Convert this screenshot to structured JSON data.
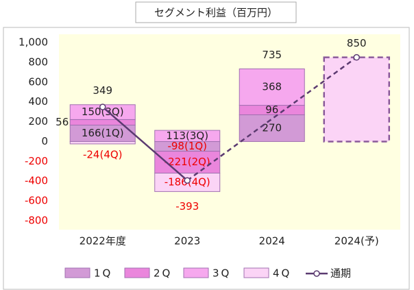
{
  "chart_data": {
    "type": "stacked_bar_line",
    "title": "セグメント利益（百万円）",
    "categories": [
      "2022年度",
      "2023",
      "2024",
      "2024(予)"
    ],
    "series": [
      {
        "name": "1Q",
        "color": "#d29ad6",
        "values": [
          166,
          -98,
          270,
          null
        ],
        "value_labels": [
          "166(1Q)",
          "-98(1Q)",
          "270",
          null
        ]
      },
      {
        "name": "2Q",
        "color": "#ea86dc",
        "values": [
          56,
          -221,
          96,
          null
        ],
        "value_labels": [
          "56",
          "-221(2Q)",
          "96",
          null
        ]
      },
      {
        "name": "3Q",
        "color": "#f6a8ee",
        "values": [
          150,
          113,
          368,
          null
        ],
        "value_labels": [
          "150(3Q)",
          "113(3Q)",
          "368",
          null
        ]
      },
      {
        "name": "4Q",
        "color": "#fbd4f6",
        "values": [
          -24,
          -186,
          null,
          850
        ],
        "value_labels": [
          "-24(4Q)",
          "-186(4Q)",
          null,
          null
        ]
      }
    ],
    "line": {
      "name": "通期",
      "color": "#5b3a70",
      "values": [
        349,
        -393,
        null,
        850
      ]
    },
    "totals": [
      349,
      -393,
      735,
      850
    ],
    "ylim": [
      -800,
      1000
    ],
    "yticks": [
      -800,
      -600,
      -400,
      -200,
      0,
      200,
      400,
      600,
      800,
      {
        "value": 1000,
        "label": "1,000"
      }
    ],
    "grid": false,
    "legend": "bottom"
  }
}
